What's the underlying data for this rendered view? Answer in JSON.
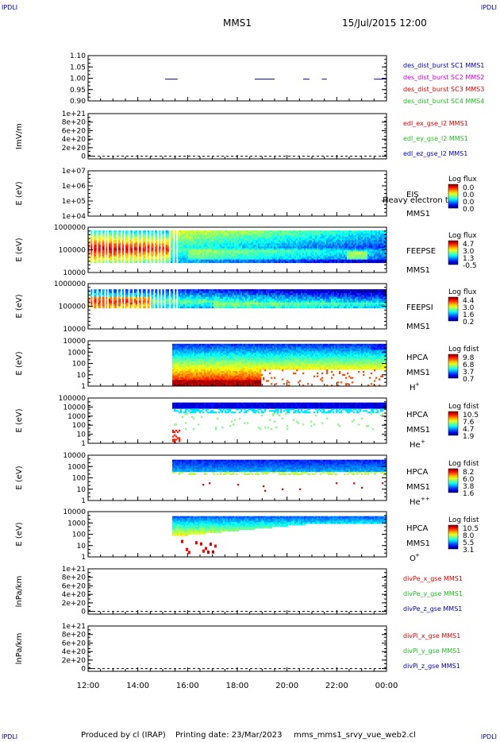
{
  "header": {
    "mission": "MMS1",
    "datetime": "15/Jul/2015 12:00"
  },
  "corner_label": "IPDLI",
  "footer": {
    "produced_by": "Produced by cl (IRAP)",
    "printing_date": "Printing date: 23/Mar/2023",
    "script": "mms_mms1_srvy_vue_web2.cl"
  },
  "colors": {
    "blue": "#0000aa",
    "magenta": "#cc00cc",
    "red": "#dd0000",
    "green": "#22bb22"
  },
  "chart_data": {
    "type": "heatmap",
    "x_range": [
      "12:00",
      "00:00"
    ],
    "x_ticks": [
      "12:00",
      "14:00",
      "16:00",
      "18:00",
      "20:00",
      "22:00",
      "00:00"
    ],
    "panels": [
      {
        "id": "burst",
        "type": "line",
        "ylabel": "",
        "y_ticks": [
          "1.10",
          "1.05",
          "1.00",
          "0.95",
          "0.90"
        ],
        "legend": [
          {
            "text": "des_dist_burst SC1 MMS1",
            "color": "#0000aa"
          },
          {
            "text": "des_dist_burst SC2 MMS2",
            "color": "#cc00cc"
          },
          {
            "text": "des_dist_burst SC3 MMS3",
            "color": "#dd0000"
          },
          {
            "text": "des_dist_burst SC4 MMS4",
            "color": "#22bb22"
          }
        ],
        "burst_intervals": [
          [
            15.1,
            15.6
          ],
          [
            18.7,
            19.5
          ],
          [
            20.65,
            20.9
          ],
          [
            21.4,
            21.6
          ],
          [
            23.5,
            24.0
          ]
        ]
      },
      {
        "id": "edl",
        "type": "line",
        "ylabel": "ImV/m",
        "y_ticks": [
          "1e+21",
          "8e+20",
          "6e+20",
          "4e+20",
          "2e+20",
          "0"
        ],
        "legend": [
          {
            "text": "edl_ex_gse_l2 MMS1",
            "color": "#dd0000"
          },
          {
            "text": "edl_ey_gse_l2 MMS1",
            "color": "#22bb22"
          },
          {
            "text": "edl_ez_gse_l2 MMS1",
            "color": "#0000aa"
          }
        ]
      },
      {
        "id": "eis",
        "type": "heatmap",
        "ylabel": "E (eV)",
        "y_ticks": [
          "1e+07",
          "1e+06",
          "1e+05",
          "1e+04"
        ],
        "instrument": [
          "EIS",
          "MMS1"
        ],
        "overlay_text": "Heavy electron to",
        "cbar_title": "Log flux",
        "cbar_ticks": [
          "0.0",
          "0.0",
          "0.0",
          "0.0"
        ]
      },
      {
        "id": "feepse",
        "type": "heatmap",
        "ylabel": "E (eV)",
        "y_ticks": [
          "1000000",
          "100000",
          "10000"
        ],
        "instrument": [
          "FEEPSE",
          "MMS1"
        ],
        "cbar_title": "Log flux",
        "cbar_ticks": [
          "4.7",
          "3.0",
          "1.3",
          "-0.5"
        ]
      },
      {
        "id": "feepsi",
        "type": "heatmap",
        "ylabel": "E (eV)",
        "y_ticks": [
          "1000000",
          "100000",
          "10000"
        ],
        "instrument": [
          "FEEPSI",
          "MMS1"
        ],
        "cbar_title": "Log flux",
        "cbar_ticks": [
          "4.4",
          "3.0",
          "1.6",
          "0.2"
        ]
      },
      {
        "id": "hpca_h",
        "type": "heatmap",
        "ylabel": "E (eV)",
        "y_ticks": [
          "10000",
          "1000",
          "100",
          "10",
          "1"
        ],
        "instrument": [
          "HPCA",
          "MMS1"
        ],
        "species": "H",
        "charge": "+",
        "cbar_title": "Log fdist",
        "cbar_ticks": [
          "9.8",
          "6.8",
          "3.7",
          "0.7"
        ]
      },
      {
        "id": "hpca_he",
        "type": "heatmap",
        "ylabel": "E (eV)",
        "y_ticks": [
          "100000",
          "10000",
          "1000",
          "100",
          "10",
          "1"
        ],
        "instrument": [
          "HPCA",
          "MMS1"
        ],
        "species": "He",
        "charge": "+",
        "cbar_title": "Log fdist",
        "cbar_ticks": [
          "10.5",
          "7.6",
          "4.7",
          "1.9"
        ]
      },
      {
        "id": "hpca_hepp",
        "type": "heatmap",
        "ylabel": "E (eV)",
        "y_ticks": [
          "10000",
          "1000",
          "100",
          "10",
          "1"
        ],
        "instrument": [
          "HPCA",
          "MMS1"
        ],
        "species": "He",
        "charge": "++",
        "cbar_title": "Log fdist",
        "cbar_ticks": [
          "8.2",
          "6.0",
          "3.8",
          "1.6"
        ]
      },
      {
        "id": "hpca_o",
        "type": "heatmap",
        "ylabel": "E (eV)",
        "y_ticks": [
          "10000",
          "1000",
          "100",
          "10",
          "1"
        ],
        "instrument": [
          "HPCA",
          "MMS1"
        ],
        "species": "O",
        "charge": "+",
        "cbar_title": "Log fdist",
        "cbar_ticks": [
          "10.5",
          "8.0",
          "5.5",
          "3.1"
        ]
      },
      {
        "id": "divpe",
        "type": "line",
        "ylabel": "lnPa/km",
        "y_ticks": [
          "1e+21",
          "8e+20",
          "6e+20",
          "4e+20",
          "2e+20",
          "0"
        ],
        "legend": [
          {
            "text": "divPe_x_gse MMS1",
            "color": "#dd0000"
          },
          {
            "text": "divPe_y_gse MMS1",
            "color": "#22bb22"
          },
          {
            "text": "divPe_z_gse MMS1",
            "color": "#0000aa"
          }
        ]
      },
      {
        "id": "divpi",
        "type": "line",
        "ylabel": "lnPa/km",
        "y_ticks": [
          "1e+21",
          "8e+20",
          "6e+20",
          "4e+20",
          "2e+20",
          "0"
        ],
        "legend": [
          {
            "text": "divPi_x_gse MMS1",
            "color": "#dd0000"
          },
          {
            "text": "divPi_y_gse MMS1",
            "color": "#22bb22"
          },
          {
            "text": "divPi_z_gse MMS1",
            "color": "#0000aa"
          }
        ]
      }
    ]
  }
}
